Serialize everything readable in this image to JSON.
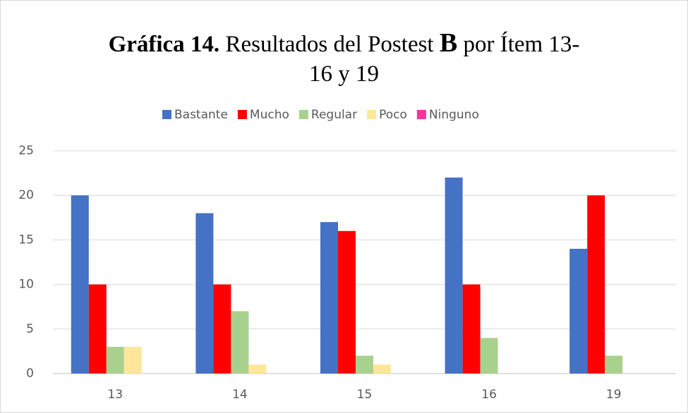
{
  "chart_data": {
    "type": "bar",
    "title": [
      "Gráfica 14.",
      "Resultados del Postest",
      "B",
      "por Ítem 13-16 y 19"
    ],
    "categories": [
      "13",
      "14",
      "15",
      "16",
      "19"
    ],
    "series": [
      {
        "name": "Bastante",
        "color": "#4472c4",
        "values": [
          20,
          18,
          17,
          22,
          14
        ]
      },
      {
        "name": "Mucho",
        "color": "#ff0000",
        "values": [
          10,
          10,
          16,
          10,
          20
        ]
      },
      {
        "name": "Regular",
        "color": "#a9d18e",
        "values": [
          3,
          7,
          2,
          4,
          2
        ]
      },
      {
        "name": "Poco",
        "color": "#ffe699",
        "values": [
          3,
          1,
          1,
          0,
          0
        ]
      },
      {
        "name": "Ninguno",
        "color": "#ff3399",
        "values": [
          0,
          0,
          0,
          0,
          0
        ]
      }
    ],
    "ylim": [
      0,
      25
    ],
    "yticks": [
      0,
      5,
      10,
      15,
      20,
      25
    ],
    "grid": true,
    "legend": "top"
  }
}
